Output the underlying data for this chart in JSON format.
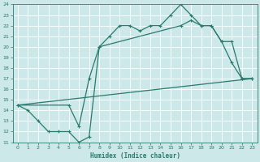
{
  "line1_x": [
    0,
    1,
    2,
    3,
    4,
    5,
    6,
    7,
    8,
    9,
    10,
    11,
    12,
    13,
    14,
    15,
    16,
    17,
    18,
    19,
    20,
    21,
    22,
    23
  ],
  "line1_y": [
    14.5,
    14.0,
    13.0,
    12.0,
    12.0,
    12.0,
    11.0,
    11.5,
    20.0,
    21.0,
    22.0,
    22.0,
    21.5,
    22.0,
    22.0,
    23.0,
    24.0,
    23.0,
    22.0,
    22.0,
    20.5,
    18.5,
    17.0,
    17.0
  ],
  "line2_x": [
    0,
    23
  ],
  "line2_y": [
    14.5,
    17.0
  ],
  "line3_x": [
    0,
    5,
    6,
    7,
    8,
    16,
    17,
    18,
    19,
    20,
    21,
    22,
    23
  ],
  "line3_y": [
    14.5,
    14.5,
    12.5,
    17.0,
    20.0,
    22.0,
    22.5,
    22.0,
    22.0,
    20.5,
    20.5,
    17.0,
    17.0
  ],
  "color": "#2a7a6e",
  "bg_color": "#cce8e8",
  "grid_color": "#b0d4d4",
  "xlabel": "Humidex (Indice chaleur)",
  "ylim": [
    11,
    24
  ],
  "xlim": [
    -0.5,
    23.5
  ],
  "yticks": [
    11,
    12,
    13,
    14,
    15,
    16,
    17,
    18,
    19,
    20,
    21,
    22,
    23,
    24
  ],
  "xticks": [
    0,
    1,
    2,
    3,
    4,
    5,
    6,
    7,
    8,
    9,
    10,
    11,
    12,
    13,
    14,
    15,
    16,
    17,
    18,
    19,
    20,
    21,
    22,
    23
  ],
  "marker": "+",
  "markersize": 3.5,
  "linewidth": 0.9,
  "tick_fontsize": 4.5,
  "xlabel_fontsize": 5.5
}
